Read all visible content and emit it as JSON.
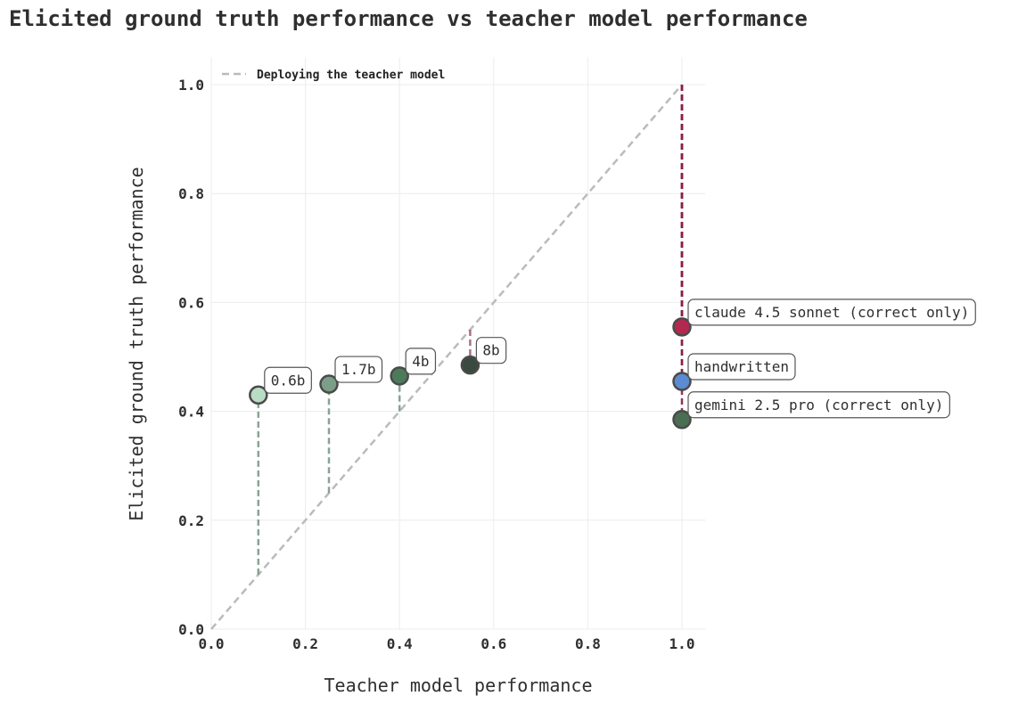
{
  "chart_data": {
    "type": "scatter",
    "title": "Elicited ground truth performance vs teacher model performance",
    "xlabel": "Teacher model performance",
    "ylabel": "Elicited ground truth performance",
    "xlim": [
      0.0,
      1.05
    ],
    "ylim": [
      0.0,
      1.05
    ],
    "x_ticks": [
      "0.0",
      "0.2",
      "0.4",
      "0.6",
      "0.8",
      "1.0"
    ],
    "y_ticks": [
      "0.0",
      "0.2",
      "0.4",
      "0.6",
      "0.8",
      "1.0"
    ],
    "grid": true,
    "legend": {
      "placement": "top-left",
      "entries": [
        {
          "label": "Deploying the teacher model",
          "style": "dashed",
          "color": "#bbbbbb"
        }
      ]
    },
    "reference_line": {
      "from": [
        0,
        0
      ],
      "to": [
        1,
        1
      ],
      "color": "#bbbbbb",
      "style": "dashed"
    },
    "points": [
      {
        "label": "0.6b",
        "x": 0.1,
        "y": 0.43,
        "color": "#b9dcc4",
        "line_color": "#7d9a8a"
      },
      {
        "label": "1.7b",
        "x": 0.25,
        "y": 0.45,
        "color": "#7c9d87",
        "line_color": "#7d9a8a"
      },
      {
        "label": "4b",
        "x": 0.4,
        "y": 0.465,
        "color": "#4c7a5a",
        "line_color": "#7d9a8a"
      },
      {
        "label": "8b",
        "x": 0.55,
        "y": 0.485,
        "color": "#3a4a40",
        "line_color": "#a0607a"
      },
      {
        "label": "claude 4.5 sonnet (correct only)",
        "x": 1.0,
        "y": 0.555,
        "color": "#b3284f",
        "line_color": "#8a1f3f"
      },
      {
        "label": "handwritten",
        "x": 1.0,
        "y": 0.455,
        "color": "#5b8bd0",
        "line_color": "#8a1f3f"
      },
      {
        "label": "gemini 2.5 pro (correct only)",
        "x": 1.0,
        "y": 0.385,
        "color": "#4a6e52",
        "line_color": "#8a1f3f"
      }
    ]
  }
}
